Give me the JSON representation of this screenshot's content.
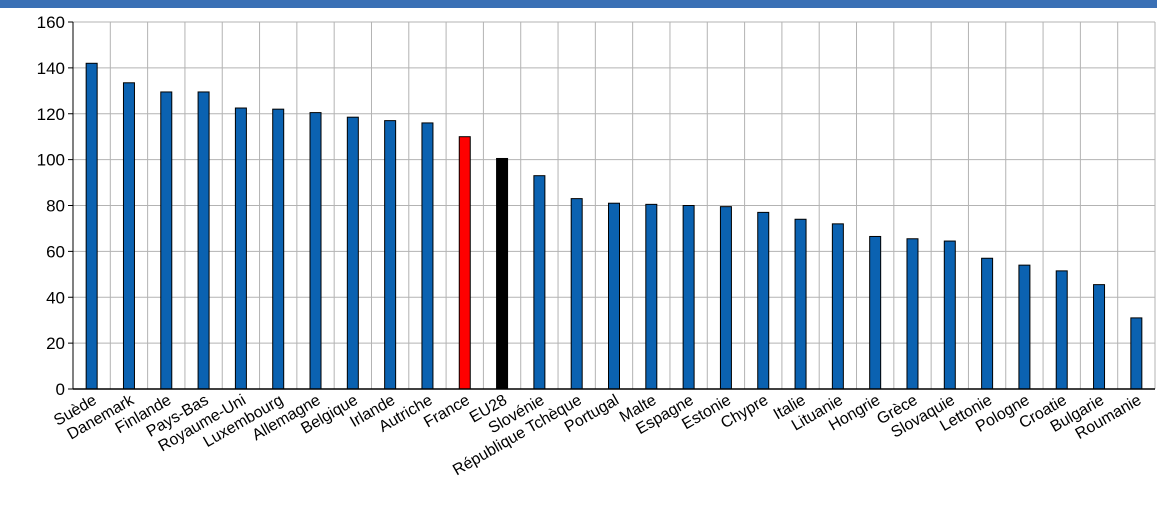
{
  "chart_data": {
    "type": "bar",
    "title": "",
    "xlabel": "",
    "ylabel": "",
    "ylim": [
      0,
      160
    ],
    "yticks": [
      0,
      20,
      40,
      60,
      80,
      100,
      120,
      140,
      160
    ],
    "grid": true,
    "legend": "none",
    "categories": [
      "Suède",
      "Danemark",
      "Finlande",
      "Pays-Bas",
      "Royaume-Uni",
      "Luxembourg",
      "Allemagne",
      "Belgique",
      "Irlande",
      "Autriche",
      "France",
      "EU28",
      "Slovénie",
      "République Tchèque",
      "Portugal",
      "Malte",
      "Espagne",
      "Estonie",
      "Chypre",
      "Italie",
      "Lituanie",
      "Hongrie",
      "Grèce",
      "Slovaquie",
      "Lettonie",
      "Pologne",
      "Croatie",
      "Bulgarie",
      "Roumanie"
    ],
    "values": [
      142,
      133.5,
      129.5,
      129.5,
      122.5,
      122,
      120.5,
      118.5,
      117,
      116,
      110,
      100.5,
      93,
      83,
      81,
      80.5,
      80,
      79.5,
      77,
      74,
      72,
      66.5,
      65.5,
      64.5,
      57,
      54,
      51.5,
      45.5,
      31
    ],
    "colors": {
      "default": "#0b62b1",
      "highlight": "#ff0000",
      "reference": "#000000",
      "bar_edge": "#000000",
      "grid": "#b3b3b3",
      "header_band": "#3a70b5"
    },
    "highlight_category": "France",
    "reference_category": "EU28"
  }
}
